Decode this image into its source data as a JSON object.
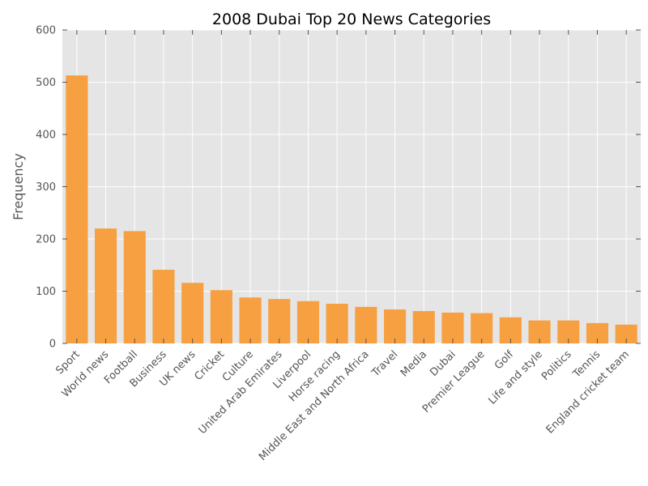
{
  "chart_data": {
    "type": "bar",
    "title": "2008 Dubai Top 20 News Categories",
    "xlabel": "",
    "ylabel": "Frequency",
    "ylim": [
      0,
      600
    ],
    "yticks": [
      0,
      100,
      200,
      300,
      400,
      500,
      600
    ],
    "grid": true,
    "legend": "none",
    "categories": [
      "Sport",
      "World news",
      "Football",
      "Business",
      "UK news",
      "Cricket",
      "Culture",
      "United Arab Emirates",
      "Liverpool",
      "Horse racing",
      "Middle East and North Africa",
      "Travel",
      "Media",
      "Dubai",
      "Premier League",
      "Golf",
      "Life and style",
      "Politics",
      "Tennis",
      "England cricket team"
    ],
    "values": [
      513,
      220,
      215,
      141,
      116,
      102,
      88,
      85,
      81,
      76,
      70,
      65,
      62,
      59,
      58,
      50,
      44,
      44,
      39,
      36
    ]
  },
  "colors": {
    "bar": "#f7a041",
    "plot_background": "#e5e5e5",
    "grid": "#ffffff",
    "tick_text": "#555555",
    "title_text": "#000000"
  }
}
